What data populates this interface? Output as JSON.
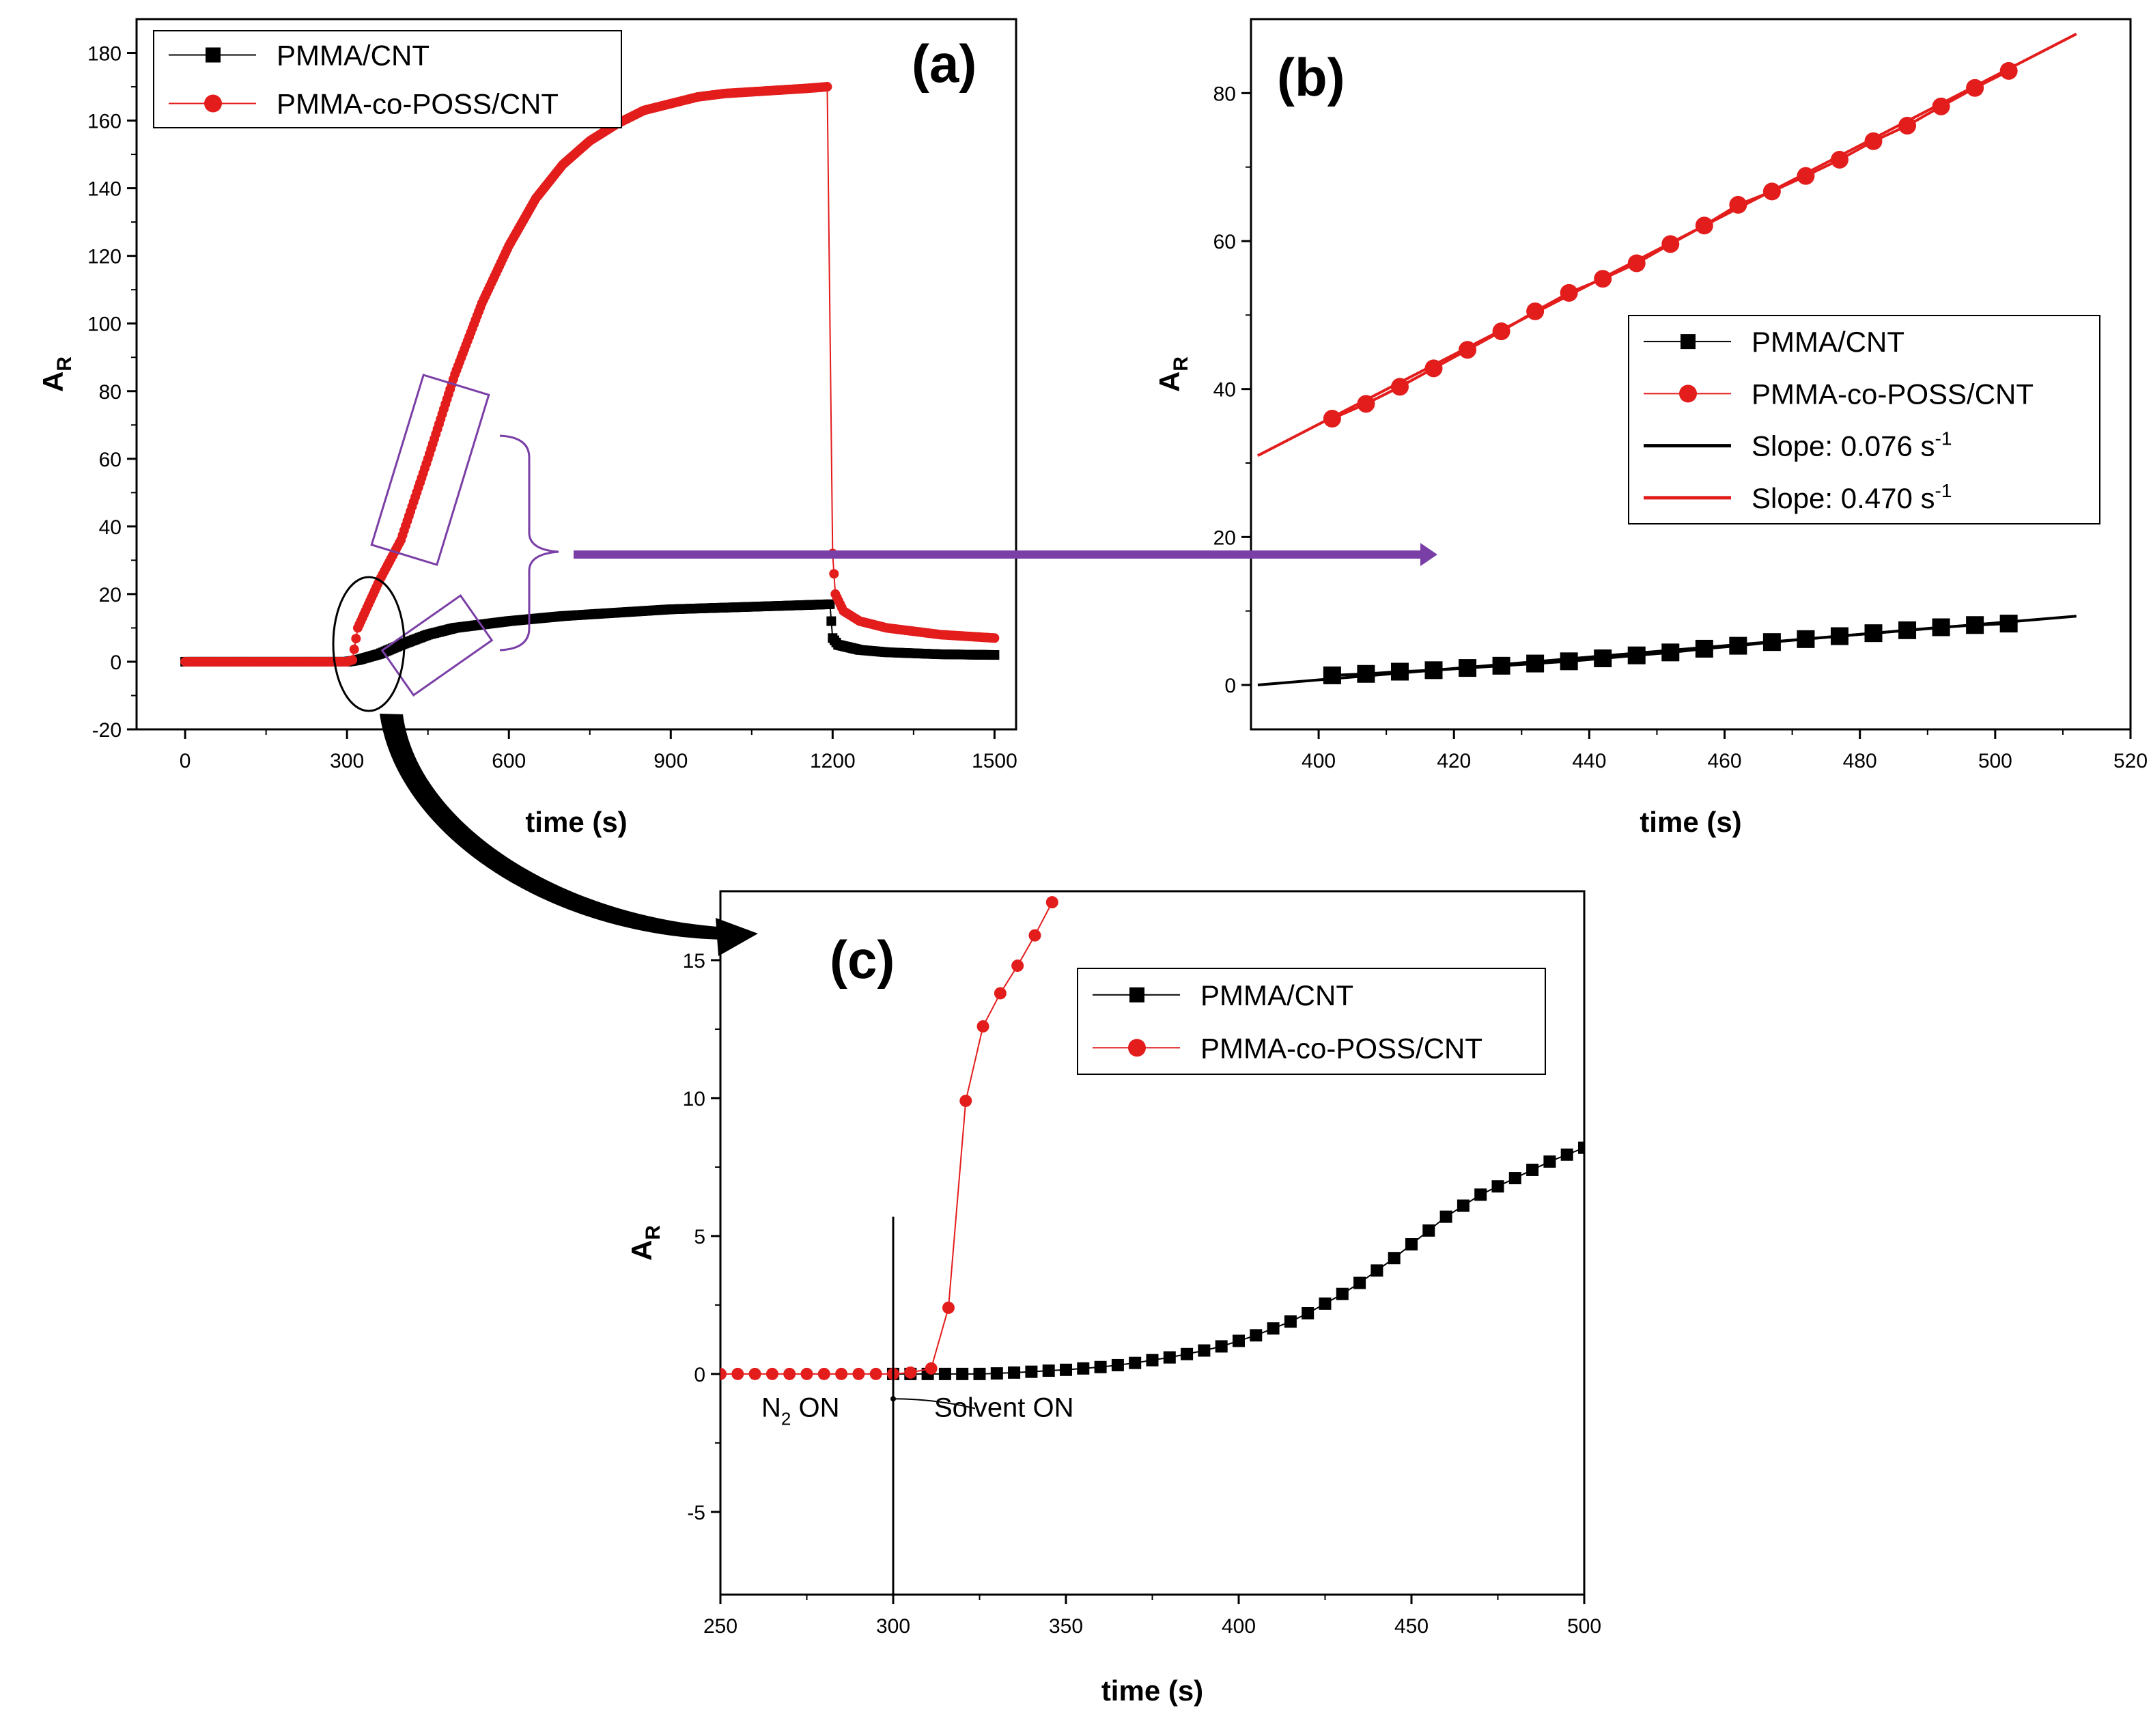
{
  "chart_data": [
    {
      "panel": "(a)",
      "type": "scatter",
      "xlabel": "time (s)",
      "ylabel_main": "A",
      "ylabel_sub": "R",
      "xlim": [
        -90,
        1540
      ],
      "ylim": [
        -20,
        190
      ],
      "xticks": [
        0,
        300,
        600,
        900,
        1200,
        1500
      ],
      "yticks": [
        -20,
        0,
        20,
        40,
        60,
        80,
        100,
        120,
        140,
        160,
        180
      ],
      "series": [
        {
          "name": "PMMA/CNT",
          "color": "#000000",
          "marker": "square",
          "x": [
            0,
            300,
            320,
            360,
            400,
            450,
            500,
            600,
            700,
            800,
            900,
            1000,
            1100,
            1195,
            1200,
            1210,
            1250,
            1300,
            1400,
            1500
          ],
          "y": [
            0,
            0,
            0.5,
            2.3,
            5.0,
            8.0,
            10.0,
            12.0,
            13.5,
            14.5,
            15.5,
            16.0,
            16.5,
            17.0,
            7.0,
            5.0,
            3.5,
            2.8,
            2.2,
            2.0
          ]
        },
        {
          "name": "PMMA-co-POSS/CNT",
          "color": "#e31c1c",
          "marker": "circle",
          "x": [
            0,
            300,
            310,
            320,
            340,
            360,
            400,
            450,
            500,
            550,
            600,
            650,
            700,
            750,
            800,
            850,
            900,
            950,
            1000,
            1050,
            1100,
            1150,
            1190,
            1200,
            1205,
            1220,
            1250,
            1300,
            1400,
            1500
          ],
          "y": [
            0,
            0,
            0.5,
            10,
            17,
            24,
            36,
            60,
            85,
            106,
            123,
            137,
            147,
            154,
            159,
            163,
            165,
            167,
            168,
            168.5,
            169,
            169.5,
            170,
            32,
            20,
            15,
            12,
            10,
            8,
            7
          ]
        }
      ],
      "legend": [
        "PMMA/CNT",
        "PMMA-co-POSS/CNT"
      ],
      "legend_position": "top-left"
    },
    {
      "panel": "(b)",
      "type": "scatter",
      "xlabel": "time (s)",
      "ylabel_main": "A",
      "ylabel_sub": "R",
      "xlim": [
        390,
        520
      ],
      "ylim": [
        -6,
        90
      ],
      "xticks": [
        400,
        420,
        440,
        460,
        480,
        500,
        520
      ],
      "yticks": [
        0,
        20,
        40,
        60,
        80
      ],
      "series": [
        {
          "name": "PMMA/CNT",
          "color": "#000000",
          "marker": "square",
          "x": [
            402,
            407,
            412,
            417,
            422,
            427,
            432,
            437,
            442,
            447,
            452,
            457,
            462,
            467,
            472,
            477,
            482,
            487,
            492,
            497,
            502
          ],
          "y": [
            1.3,
            1.5,
            1.8,
            2.0,
            2.3,
            2.6,
            2.9,
            3.2,
            3.6,
            4.0,
            4.4,
            4.9,
            5.3,
            5.8,
            6.2,
            6.6,
            7.0,
            7.4,
            7.8,
            8.1,
            8.3
          ]
        },
        {
          "name": "PMMA-co-POSS/CNT",
          "color": "#e31c1c",
          "marker": "circle",
          "x": [
            402,
            407,
            412,
            417,
            422,
            427,
            432,
            437,
            442,
            447,
            452,
            457,
            462,
            467,
            472,
            477,
            482,
            487,
            492,
            497,
            502
          ],
          "y": [
            36,
            38,
            40.3,
            42.8,
            45.3,
            47.8,
            50.5,
            53,
            54.9,
            57,
            59.6,
            62.1,
            64.9,
            66.7,
            68.8,
            71,
            73.5,
            75.6,
            78.2,
            80.7,
            83
          ]
        }
      ],
      "fit_lines": [
        {
          "name": "Slope: 0.076 s",
          "sup": "-1",
          "color": "#000000",
          "x": [
            391,
            512
          ],
          "y": [
            0,
            9.3
          ]
        },
        {
          "name": "Slope: 0.470 s",
          "sup": "-1",
          "color": "#e31c1c",
          "x": [
            391,
            512
          ],
          "y": [
            31,
            88
          ]
        }
      ],
      "legend": [
        "PMMA/CNT",
        "PMMA-co-POSS/CNT",
        "Slope: 0.076 s-1",
        "Slope: 0.470 s-1"
      ],
      "legend_position": "center-right"
    },
    {
      "panel": "(c)",
      "type": "scatter",
      "xlabel": "time (s)",
      "ylabel_main": "A",
      "ylabel_sub": "R",
      "xlim": [
        250,
        500
      ],
      "ylim": [
        -8,
        17.5
      ],
      "xticks": [
        250,
        300,
        350,
        400,
        450,
        500
      ],
      "yticks": [
        -5,
        0,
        5,
        10,
        15
      ],
      "series": [
        {
          "name": "PMMA/CNT",
          "color": "#000000",
          "marker": "square",
          "x": [
            300,
            305,
            310,
            315,
            320,
            325,
            330,
            335,
            340,
            345,
            350,
            355,
            360,
            365,
            370,
            375,
            380,
            385,
            390,
            395,
            400,
            405,
            410,
            415,
            420,
            425,
            430,
            435,
            440,
            445,
            450,
            455,
            460,
            465,
            470,
            475,
            480,
            485,
            490,
            495,
            500
          ],
          "y": [
            0,
            0,
            0,
            0,
            0,
            0,
            0.02,
            0.05,
            0.08,
            0.12,
            0.15,
            0.2,
            0.25,
            0.32,
            0.4,
            0.5,
            0.6,
            0.72,
            0.85,
            1.0,
            1.2,
            1.4,
            1.65,
            1.9,
            2.2,
            2.55,
            2.9,
            3.3,
            3.75,
            4.2,
            4.7,
            5.2,
            5.7,
            6.1,
            6.5,
            6.8,
            7.1,
            7.4,
            7.7,
            7.95,
            8.2
          ]
        },
        {
          "name": "PMMA-co-POSS/CNT",
          "color": "#e31c1c",
          "marker": "circle",
          "x": [
            250,
            255,
            260,
            265,
            270,
            275,
            280,
            285,
            290,
            295,
            300,
            305,
            311,
            316,
            321,
            326,
            331,
            336,
            341,
            346
          ],
          "y": [
            0,
            0,
            0,
            0,
            0,
            0,
            0,
            0,
            0,
            0,
            0,
            0.05,
            0.2,
            2.4,
            9.9,
            12.6,
            13.8,
            14.8,
            15.9,
            17.1
          ]
        }
      ],
      "legend": [
        "PMMA/CNT",
        "PMMA-co-POSS/CNT"
      ],
      "legend_position": "top-right",
      "annotations": {
        "n2_main": "N",
        "n2_sub": "2",
        "n2_rest": " ON",
        "solvent": "Solvent ON"
      }
    }
  ],
  "colors": {
    "black_series": "#000000",
    "red_series": "#e31c1c",
    "highlight": "#7a3fa6"
  }
}
